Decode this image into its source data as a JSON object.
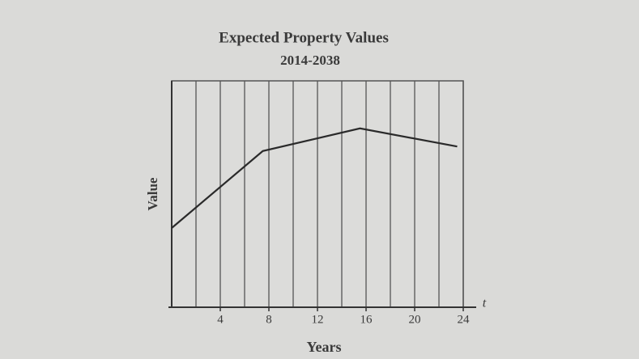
{
  "chart_data": {
    "type": "line",
    "title": "Expected Property Values",
    "subtitle": "2014-2038",
    "x_label": "Years",
    "y_label": "Value",
    "x_variable": "t",
    "x": [
      0,
      7.5,
      15.5,
      23.5
    ],
    "series": [
      {
        "values": [
          3.5,
          6.9,
          7.9,
          7.1
        ],
        "color": "#2a2a2a"
      }
    ],
    "xlim": [
      0,
      24
    ],
    "ylim": [
      0,
      10
    ],
    "xticks": [
      4,
      8,
      12,
      16,
      20,
      24
    ],
    "xgrid": [
      0,
      2,
      4,
      6,
      8,
      10,
      12,
      14,
      16,
      18,
      20,
      22,
      24
    ],
    "grid": true
  }
}
